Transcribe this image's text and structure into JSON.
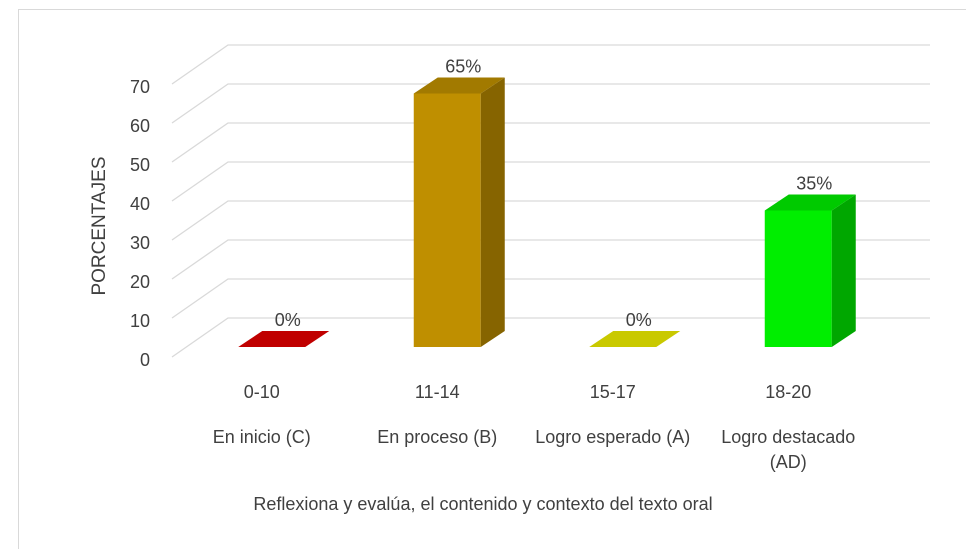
{
  "chart_data": {
    "type": "bar3d",
    "x_label": "Reflexiona y evalúa, el contenido y contexto del texto oral",
    "y_label": "PORCENTAJES",
    "categories": [
      [
        "0-10",
        "En inicio (C)"
      ],
      [
        "11-14",
        "En proceso (B)"
      ],
      [
        "15-17",
        "Logro esperado (A)"
      ],
      [
        "18-20",
        "Logro destacado (AD)"
      ]
    ],
    "values": [
      0,
      65,
      0,
      35
    ],
    "value_labels": [
      "0%",
      "65%",
      "0%",
      "35%"
    ],
    "colors": [
      "#c00000",
      "#bf8f00",
      "#c9c900",
      "#00ee00"
    ],
    "ylim": [
      0,
      70
    ],
    "yticks": [
      0,
      10,
      20,
      30,
      40,
      50,
      60,
      70
    ],
    "grid": true
  }
}
